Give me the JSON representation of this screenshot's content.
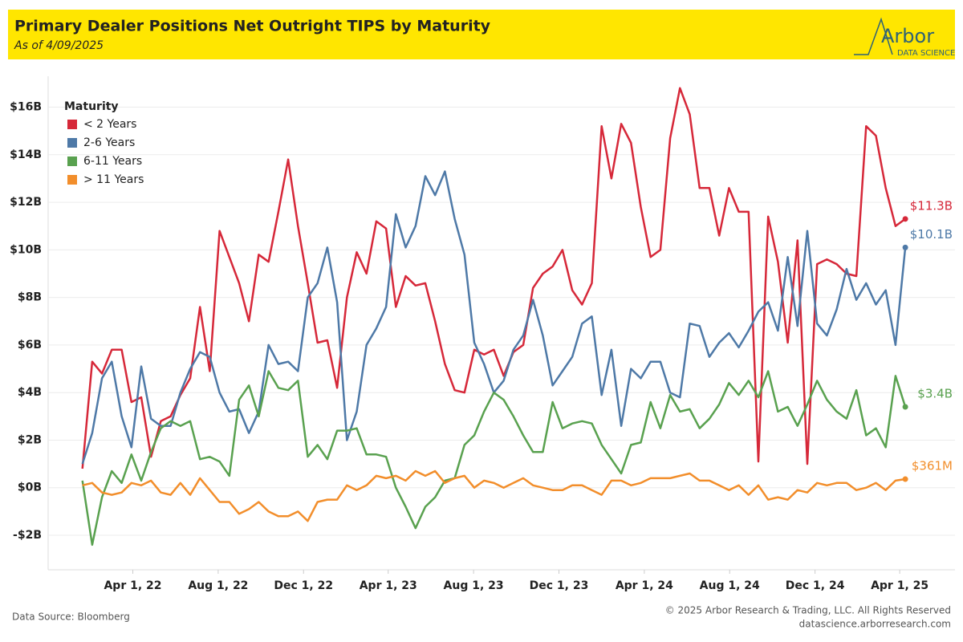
{
  "chart_data": {
    "type": "line",
    "title": "Primary Dealer Positions Net Outright TIPS by Maturity",
    "subtitle": "As of 4/09/2025",
    "logo": {
      "name": "Arbor",
      "tagline": "DATA SCIENCE"
    },
    "source": "Data Source: Bloomberg",
    "copyright": "© 2025 Arbor Research & Trading, LLC. All Rights Reserved",
    "website": "datascience.arborresearch.com",
    "legend_title": "Maturity",
    "legend": "upper left",
    "grid": true,
    "xlim": [
      "2021-12-01",
      "2025-06-19"
    ],
    "xticks": [
      {
        "value": "2022-04-01",
        "label": "Apr 1, 22"
      },
      {
        "value": "2022-08-01",
        "label": "Aug 1, 22"
      },
      {
        "value": "2022-12-01",
        "label": "Dec 1, 22"
      },
      {
        "value": "2023-04-01",
        "label": "Apr 1, 23"
      },
      {
        "value": "2023-08-01",
        "label": "Aug 1, 23"
      },
      {
        "value": "2023-12-01",
        "label": "Dec 1, 23"
      },
      {
        "value": "2024-04-01",
        "label": "Apr 1, 24"
      },
      {
        "value": "2024-08-01",
        "label": "Aug 1, 24"
      },
      {
        "value": "2024-12-01",
        "label": "Dec 1, 24"
      },
      {
        "value": "2025-04-01",
        "label": "Apr 1, 25"
      }
    ],
    "ylim": [
      -3.45,
      17.3
    ],
    "yticks": [
      {
        "value": -2,
        "label": "-$2B"
      },
      {
        "value": 0,
        "label": "$0B"
      },
      {
        "value": 2,
        "label": "$2B"
      },
      {
        "value": 4,
        "label": "$4B"
      },
      {
        "value": 6,
        "label": "$6B"
      },
      {
        "value": 8,
        "label": "$8B"
      },
      {
        "value": 10,
        "label": "$10B"
      },
      {
        "value": 12,
        "label": "$12B"
      },
      {
        "value": 14,
        "label": "$14B"
      },
      {
        "value": 16,
        "label": "$16B"
      }
    ],
    "x": [
      "2022-01-19",
      "2022-02-02",
      "2022-02-16",
      "2022-03-02",
      "2022-03-16",
      "2022-03-30",
      "2022-04-13",
      "2022-04-27",
      "2022-05-11",
      "2022-05-25",
      "2022-06-08",
      "2022-06-22",
      "2022-07-06",
      "2022-07-20",
      "2022-08-03",
      "2022-08-17",
      "2022-08-31",
      "2022-09-14",
      "2022-09-28",
      "2022-10-12",
      "2022-10-26",
      "2022-11-09",
      "2022-11-23",
      "2022-12-07",
      "2022-12-21",
      "2023-01-04",
      "2023-01-18",
      "2023-02-01",
      "2023-02-15",
      "2023-03-01",
      "2023-03-15",
      "2023-03-29",
      "2023-04-12",
      "2023-04-26",
      "2023-05-10",
      "2023-05-24",
      "2023-06-07",
      "2023-06-21",
      "2023-07-05",
      "2023-07-19",
      "2023-08-02",
      "2023-08-16",
      "2023-08-30",
      "2023-09-13",
      "2023-09-27",
      "2023-10-11",
      "2023-10-25",
      "2023-11-08",
      "2023-11-22",
      "2023-12-06",
      "2023-12-20",
      "2024-01-03",
      "2024-01-17",
      "2024-01-31",
      "2024-02-14",
      "2024-02-28",
      "2024-03-13",
      "2024-03-27",
      "2024-04-10",
      "2024-04-24",
      "2024-05-08",
      "2024-05-22",
      "2024-06-05",
      "2024-06-19",
      "2024-07-03",
      "2024-07-17",
      "2024-07-31",
      "2024-08-14",
      "2024-08-28",
      "2024-09-11",
      "2024-09-25",
      "2024-10-09",
      "2024-10-23",
      "2024-11-06",
      "2024-11-20",
      "2024-12-04",
      "2024-12-18",
      "2025-01-01",
      "2025-01-15",
      "2025-01-29",
      "2025-02-12",
      "2025-02-26",
      "2025-03-12",
      "2025-03-26",
      "2025-04-09"
    ],
    "series": [
      {
        "name": "< 2 Years",
        "color": "#d62839",
        "values": [
          0.8,
          5.3,
          4.8,
          5.8,
          5.8,
          3.6,
          3.8,
          1.3,
          2.8,
          3.0,
          3.9,
          4.6,
          7.6,
          4.9,
          10.8,
          9.7,
          8.6,
          7.0,
          9.8,
          9.5,
          11.6,
          13.8,
          11.0,
          8.6,
          6.1,
          6.2,
          4.2,
          8.0,
          9.9,
          9.0,
          11.2,
          10.9,
          7.6,
          8.9,
          8.5,
          8.6,
          7.0,
          5.2,
          4.1,
          4.0,
          5.8,
          5.6,
          5.8,
          4.7,
          5.7,
          6.0,
          8.4,
          9.0,
          9.3,
          10.0,
          8.3,
          7.7,
          8.6,
          15.2,
          13.0,
          15.3,
          14.5,
          11.8,
          9.7,
          10.0,
          14.7,
          16.8,
          15.7,
          12.6,
          12.6,
          10.6,
          12.6,
          11.6,
          11.6,
          1.1,
          11.4,
          9.5,
          6.1,
          10.4,
          1.0,
          9.4,
          9.6,
          9.4,
          9.0,
          8.9,
          15.2,
          14.8,
          12.6,
          11.0,
          11.3
        ],
        "value_labels": [
          null,
          null,
          null,
          null,
          null,
          null,
          null,
          null,
          null,
          null,
          null,
          null,
          null,
          null,
          null,
          null,
          null,
          null,
          null,
          null,
          null,
          null,
          null,
          null,
          null,
          null,
          null,
          null,
          null,
          null,
          null,
          null,
          null,
          null,
          null,
          null,
          null,
          null,
          null,
          null,
          null,
          null,
          null,
          null,
          null,
          null,
          null,
          null,
          null,
          null,
          null,
          null,
          null,
          null,
          null,
          null,
          null,
          null,
          null,
          null,
          null,
          null,
          null,
          null,
          null,
          null,
          null,
          null,
          null,
          null,
          null,
          null,
          null,
          null,
          null,
          null,
          null,
          null,
          null,
          null,
          null,
          null,
          null,
          null,
          "$11.3B"
        ]
      },
      {
        "name": "2-6 Years",
        "color": "#4e79a7",
        "values": [
          1.0,
          2.3,
          4.6,
          5.3,
          3.0,
          1.7,
          5.1,
          2.9,
          2.6,
          2.6,
          4.0,
          5.0,
          5.7,
          5.5,
          4.0,
          3.2,
          3.3,
          2.3,
          3.2,
          6.0,
          5.2,
          5.3,
          4.9,
          8.0,
          8.6,
          10.1,
          7.8,
          2.0,
          3.2,
          6.0,
          6.7,
          7.6,
          11.5,
          10.1,
          11.0,
          13.1,
          12.3,
          13.3,
          11.3,
          9.8,
          6.1,
          5.2,
          4.0,
          4.5,
          5.8,
          6.4,
          7.9,
          6.4,
          4.3,
          4.9,
          5.5,
          6.9,
          7.2,
          3.9,
          5.8,
          2.6,
          5.0,
          4.6,
          5.3,
          5.3,
          4.0,
          3.8,
          6.9,
          6.8,
          5.5,
          6.1,
          6.5,
          5.9,
          6.6,
          7.4,
          7.8,
          6.6,
          9.7,
          6.8,
          10.8,
          6.9,
          6.4,
          7.5,
          9.2,
          7.9,
          8.6,
          7.7,
          8.3,
          6.0,
          10.1
        ],
        "value_labels": [
          null,
          null,
          null,
          null,
          null,
          null,
          null,
          null,
          null,
          null,
          null,
          null,
          null,
          null,
          null,
          null,
          null,
          null,
          null,
          null,
          null,
          null,
          null,
          null,
          null,
          null,
          null,
          null,
          null,
          null,
          null,
          null,
          null,
          null,
          null,
          null,
          null,
          null,
          null,
          null,
          null,
          null,
          null,
          null,
          null,
          null,
          null,
          null,
          null,
          null,
          null,
          null,
          null,
          null,
          null,
          null,
          null,
          null,
          null,
          null,
          null,
          null,
          null,
          null,
          null,
          null,
          null,
          null,
          null,
          null,
          null,
          null,
          null,
          null,
          null,
          null,
          null,
          null,
          null,
          null,
          null,
          null,
          null,
          null,
          "$10.1B"
        ]
      },
      {
        "name": "6-11 Years",
        "color": "#59a14f",
        "values": [
          0.3,
          -2.4,
          -0.4,
          0.7,
          0.2,
          1.4,
          0.3,
          1.5,
          2.5,
          2.8,
          2.6,
          2.8,
          1.2,
          1.3,
          1.1,
          0.5,
          3.7,
          4.3,
          3.0,
          4.9,
          4.2,
          4.1,
          4.5,
          1.3,
          1.8,
          1.2,
          2.4,
          2.4,
          2.5,
          1.4,
          1.4,
          1.3,
          0.0,
          -0.8,
          -1.7,
          -0.8,
          -0.4,
          0.3,
          0.4,
          1.8,
          2.2,
          3.2,
          4.0,
          3.7,
          3.0,
          2.2,
          1.5,
          1.5,
          3.6,
          2.5,
          2.7,
          2.8,
          2.7,
          1.8,
          1.2,
          0.6,
          1.8,
          1.9,
          3.6,
          2.5,
          3.9,
          3.2,
          3.3,
          2.5,
          2.9,
          3.5,
          4.4,
          3.9,
          4.5,
          3.8,
          4.9,
          3.2,
          3.4,
          2.6,
          3.5,
          4.5,
          3.7,
          3.2,
          2.9,
          4.1,
          2.2,
          2.5,
          1.7,
          4.7,
          3.4
        ],
        "value_labels": [
          null,
          null,
          null,
          null,
          null,
          null,
          null,
          null,
          null,
          null,
          null,
          null,
          null,
          null,
          null,
          null,
          null,
          null,
          null,
          null,
          null,
          null,
          null,
          null,
          null,
          null,
          null,
          null,
          null,
          null,
          null,
          null,
          null,
          null,
          null,
          null,
          null,
          null,
          null,
          null,
          null,
          null,
          null,
          null,
          null,
          null,
          null,
          null,
          null,
          null,
          null,
          null,
          null,
          null,
          null,
          null,
          null,
          null,
          null,
          null,
          null,
          null,
          null,
          null,
          null,
          null,
          null,
          null,
          null,
          null,
          null,
          null,
          null,
          null,
          null,
          null,
          null,
          null,
          null,
          null,
          null,
          null,
          null,
          null,
          "$3.4B"
        ]
      },
      {
        "name": "> 11 Years",
        "color": "#f28e2b",
        "values": [
          0.1,
          0.2,
          -0.2,
          -0.3,
          -0.2,
          0.2,
          0.1,
          0.3,
          -0.2,
          -0.3,
          0.2,
          -0.3,
          0.4,
          -0.1,
          -0.6,
          -0.6,
          -1.1,
          -0.9,
          -0.6,
          -1.0,
          -1.2,
          -1.2,
          -1.0,
          -1.4,
          -0.6,
          -0.5,
          -0.5,
          0.1,
          -0.1,
          0.1,
          0.5,
          0.4,
          0.5,
          0.3,
          0.7,
          0.5,
          0.7,
          0.2,
          0.4,
          0.5,
          0.0,
          0.3,
          0.2,
          0.0,
          0.2,
          0.4,
          0.1,
          0.0,
          -0.1,
          -0.1,
          0.1,
          0.1,
          -0.1,
          -0.3,
          0.3,
          0.3,
          0.1,
          0.2,
          0.4,
          0.4,
          0.4,
          0.5,
          0.6,
          0.3,
          0.3,
          0.1,
          -0.1,
          0.1,
          -0.3,
          0.1,
          -0.5,
          -0.4,
          -0.5,
          -0.1,
          -0.2,
          0.2,
          0.1,
          0.2,
          0.2,
          -0.1,
          0.0,
          0.2,
          -0.1,
          0.3,
          0.361
        ],
        "value_labels": [
          null,
          null,
          null,
          null,
          null,
          null,
          null,
          null,
          null,
          null,
          null,
          null,
          null,
          null,
          null,
          null,
          null,
          null,
          null,
          null,
          null,
          null,
          null,
          null,
          null,
          null,
          null,
          null,
          null,
          null,
          null,
          null,
          null,
          null,
          null,
          null,
          null,
          null,
          null,
          null,
          null,
          null,
          null,
          null,
          null,
          null,
          null,
          null,
          null,
          null,
          null,
          null,
          null,
          null,
          null,
          null,
          null,
          null,
          null,
          null,
          null,
          null,
          null,
          null,
          null,
          null,
          null,
          null,
          null,
          null,
          null,
          null,
          null,
          null,
          null,
          null,
          null,
          null,
          null,
          null,
          null,
          null,
          null,
          null,
          "$361M"
        ]
      }
    ]
  }
}
